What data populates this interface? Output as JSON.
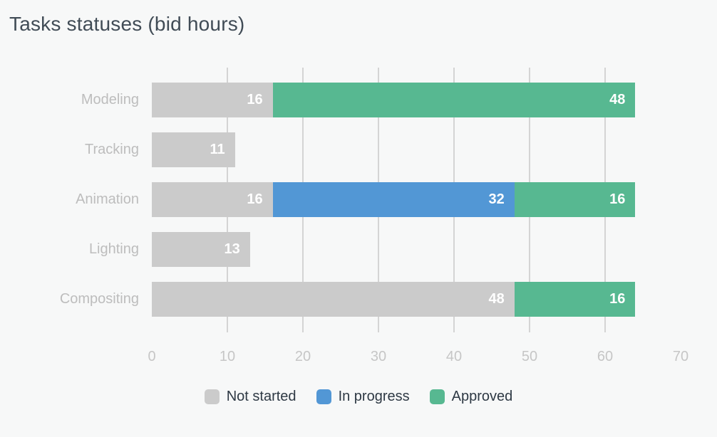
{
  "title": "Tasks statuses (bid hours)",
  "chart_data": {
    "type": "bar",
    "orientation": "horizontal",
    "stacked": true,
    "title": "Tasks statuses (bid hours)",
    "categories": [
      "Modeling",
      "Tracking",
      "Animation",
      "Lighting",
      "Compositing"
    ],
    "series": [
      {
        "name": "Not started",
        "color": "#cbcbcb",
        "values": [
          16,
          11,
          16,
          13,
          48
        ]
      },
      {
        "name": "In progress",
        "color": "#5297d5",
        "values": [
          0,
          0,
          32,
          0,
          0
        ]
      },
      {
        "name": "Approved",
        "color": "#57b891",
        "values": [
          48,
          0,
          16,
          0,
          16
        ]
      }
    ],
    "totals": [
      64,
      11,
      64,
      13,
      64
    ],
    "xlim": [
      0,
      70
    ],
    "xticks": [
      0,
      10,
      20,
      30,
      40,
      50,
      60,
      70
    ],
    "grid": "vertical-lines-at-inner-ticks",
    "legend_position": "bottom-center",
    "value_label_style": "white-inside-right"
  },
  "colors": {
    "background": "#f7f8f8",
    "gridline": "#d4d4d4",
    "title_text": "#414c56",
    "category_text": "#bdbdbd",
    "tick_text": "#c6c6c6",
    "legend_text": "#2e3944"
  }
}
